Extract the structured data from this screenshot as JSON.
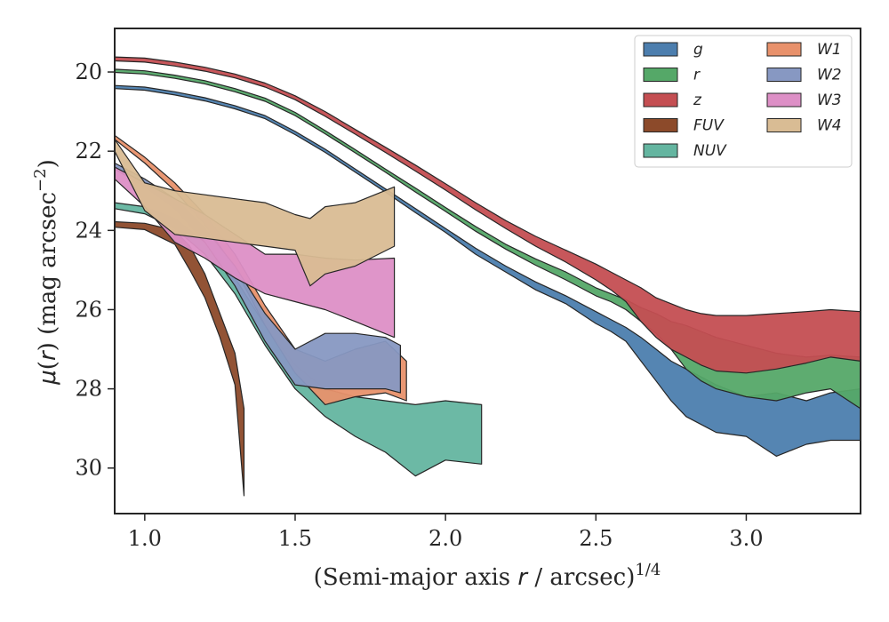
{
  "chart_data": {
    "type": "area",
    "xlabel": "(Semi-major axis r / arcsec)^1/4",
    "ylabel": "μ(r) (mag arcsec^−2)",
    "xlim": [
      0.9,
      3.38
    ],
    "ylim": [
      31.15,
      18.9
    ],
    "y_inverted": true,
    "xticks": [
      1.0,
      1.5,
      2.0,
      2.5,
      3.0
    ],
    "xtick_labels": [
      "1.0",
      "1.5",
      "2.0",
      "2.5",
      "3.0"
    ],
    "yticks": [
      20,
      22,
      24,
      26,
      28,
      30
    ],
    "ytick_labels": [
      "20",
      "22",
      "24",
      "26",
      "28",
      "30"
    ],
    "grid": false,
    "legend_position": "top-right",
    "legend_columns": 2,
    "series": [
      {
        "name": "g",
        "color": "#4c7eae",
        "x": [
          0.9,
          1.0,
          1.1,
          1.2,
          1.3,
          1.4,
          1.5,
          1.6,
          1.7,
          1.8,
          1.9,
          2.0,
          2.1,
          2.2,
          2.3,
          2.4,
          2.5,
          2.55,
          2.6,
          2.65,
          2.7,
          2.75,
          2.8,
          2.85,
          2.9,
          3.0,
          3.1,
          3.2,
          3.28,
          3.38
        ],
        "lower": [
          20.34,
          20.38,
          20.5,
          20.65,
          20.85,
          21.1,
          21.5,
          21.95,
          22.45,
          22.95,
          23.45,
          23.95,
          24.45,
          24.9,
          25.3,
          25.65,
          26.05,
          26.25,
          26.45,
          26.7,
          27.0,
          27.3,
          27.5,
          27.7,
          27.9,
          28.2,
          28.1,
          28.3,
          28.1,
          28.0
        ],
        "upper": [
          20.42,
          20.46,
          20.58,
          20.73,
          20.93,
          21.18,
          21.58,
          22.03,
          22.53,
          23.03,
          23.55,
          24.05,
          24.6,
          25.05,
          25.5,
          25.85,
          26.35,
          26.55,
          26.8,
          27.3,
          27.8,
          28.3,
          28.7,
          28.9,
          29.1,
          29.2,
          29.7,
          29.4,
          29.3,
          29.3
        ]
      },
      {
        "name": "r",
        "color": "#55a868",
        "x": [
          0.9,
          1.0,
          1.1,
          1.2,
          1.3,
          1.4,
          1.5,
          1.6,
          1.7,
          1.8,
          1.9,
          2.0,
          2.1,
          2.2,
          2.3,
          2.4,
          2.5,
          2.55,
          2.6,
          2.65,
          2.7,
          2.75,
          2.8,
          2.85,
          2.9,
          3.0,
          3.1,
          3.2,
          3.28,
          3.38
        ],
        "lower": [
          19.93,
          19.97,
          20.08,
          20.22,
          20.42,
          20.66,
          21.02,
          21.48,
          21.96,
          22.45,
          22.93,
          23.42,
          23.9,
          24.35,
          24.72,
          25.05,
          25.45,
          25.6,
          25.75,
          25.95,
          26.1,
          26.3,
          26.4,
          26.55,
          26.7,
          26.9,
          27.1,
          27.2,
          27.15,
          27.2
        ],
        "upper": [
          20.01,
          20.05,
          20.16,
          20.3,
          20.5,
          20.74,
          21.1,
          21.56,
          22.04,
          22.53,
          23.03,
          23.52,
          24.02,
          24.47,
          24.88,
          25.25,
          25.65,
          25.8,
          26.0,
          26.3,
          26.6,
          27.0,
          27.5,
          27.8,
          28.0,
          28.2,
          28.3,
          28.1,
          28.0,
          28.5
        ]
      },
      {
        "name": "z",
        "color": "#c44e52",
        "x": [
          0.9,
          1.0,
          1.1,
          1.2,
          1.3,
          1.4,
          1.5,
          1.6,
          1.7,
          1.8,
          1.9,
          2.0,
          2.1,
          2.2,
          2.3,
          2.4,
          2.5,
          2.55,
          2.6,
          2.65,
          2.7,
          2.75,
          2.8,
          2.85,
          2.9,
          3.0,
          3.1,
          3.2,
          3.28,
          3.38
        ],
        "lower": [
          19.62,
          19.65,
          19.75,
          19.88,
          20.05,
          20.28,
          20.6,
          21.0,
          21.45,
          21.9,
          22.35,
          22.82,
          23.3,
          23.75,
          24.15,
          24.5,
          24.85,
          25.05,
          25.25,
          25.45,
          25.7,
          25.85,
          26.0,
          26.1,
          26.15,
          26.15,
          26.1,
          26.05,
          26.0,
          26.05
        ],
        "upper": [
          19.72,
          19.75,
          19.85,
          19.98,
          20.15,
          20.38,
          20.7,
          21.12,
          21.57,
          22.03,
          22.5,
          22.98,
          23.48,
          23.95,
          24.4,
          24.8,
          25.25,
          25.5,
          25.8,
          26.3,
          26.7,
          27.0,
          27.2,
          27.4,
          27.55,
          27.6,
          27.5,
          27.35,
          27.2,
          27.3
        ]
      },
      {
        "name": "FUV",
        "color": "#8c4a2a",
        "x": [
          0.9,
          1.0,
          1.1,
          1.15,
          1.2,
          1.25,
          1.3,
          1.33
        ],
        "lower": [
          23.78,
          23.82,
          24.0,
          24.4,
          25.1,
          26.1,
          27.1,
          28.5
        ],
        "upper": [
          23.92,
          23.98,
          24.35,
          25.0,
          25.7,
          26.7,
          27.9,
          30.7
        ]
      },
      {
        "name": "NUV",
        "color": "#64b5a0",
        "x": [
          0.9,
          1.0,
          1.1,
          1.2,
          1.3,
          1.4,
          1.5,
          1.6,
          1.7,
          1.8,
          1.9,
          2.0,
          2.12
        ],
        "lower": [
          23.3,
          23.4,
          23.7,
          24.3,
          25.2,
          26.4,
          27.4,
          28.0,
          28.2,
          28.3,
          28.4,
          28.3,
          28.4
        ],
        "upper": [
          23.45,
          23.58,
          23.95,
          24.6,
          25.6,
          26.9,
          28.0,
          28.7,
          29.2,
          29.6,
          30.2,
          29.8,
          29.9
        ]
      },
      {
        "name": "W1",
        "color": "#e8916b",
        "x": [
          0.9,
          1.0,
          1.1,
          1.2,
          1.3,
          1.4,
          1.5,
          1.6,
          1.7,
          1.8,
          1.87
        ],
        "lower": [
          21.6,
          22.15,
          22.8,
          23.6,
          24.6,
          25.9,
          27.0,
          27.3,
          27.0,
          26.8,
          27.3
        ],
        "upper": [
          21.7,
          22.3,
          23.0,
          23.85,
          24.95,
          26.4,
          27.6,
          28.4,
          28.2,
          28.1,
          28.3
        ]
      },
      {
        "name": "W2",
        "color": "#8798c2",
        "x": [
          0.9,
          1.0,
          1.1,
          1.2,
          1.3,
          1.4,
          1.5,
          1.6,
          1.7,
          1.8,
          1.85
        ],
        "lower": [
          22.3,
          22.7,
          23.2,
          23.95,
          24.9,
          26.1,
          27.0,
          26.6,
          26.6,
          26.7,
          26.9
        ],
        "upper": [
          22.45,
          22.9,
          23.45,
          24.3,
          25.4,
          26.8,
          27.9,
          28.0,
          28.0,
          28.0,
          28.1
        ]
      },
      {
        "name": "W3",
        "color": "#dd8fc6",
        "x": [
          0.9,
          1.0,
          1.1,
          1.2,
          1.3,
          1.4,
          1.5,
          1.6,
          1.7,
          1.83
        ],
        "lower": [
          22.4,
          22.8,
          23.2,
          23.6,
          24.1,
          24.6,
          24.6,
          24.7,
          24.75,
          24.7
        ],
        "upper": [
          22.7,
          23.4,
          24.3,
          24.7,
          25.2,
          25.6,
          25.8,
          26.0,
          26.3,
          26.7
        ]
      },
      {
        "name": "W4",
        "color": "#d9bc94",
        "x": [
          0.9,
          1.0,
          1.1,
          1.2,
          1.3,
          1.4,
          1.5,
          1.55,
          1.6,
          1.7,
          1.83
        ],
        "lower": [
          21.7,
          22.8,
          23.0,
          23.1,
          23.2,
          23.3,
          23.6,
          23.7,
          23.4,
          23.3,
          22.9
        ],
        "upper": [
          22.0,
          23.5,
          24.1,
          24.2,
          24.3,
          24.4,
          24.5,
          25.4,
          25.1,
          24.9,
          24.4
        ]
      }
    ]
  }
}
